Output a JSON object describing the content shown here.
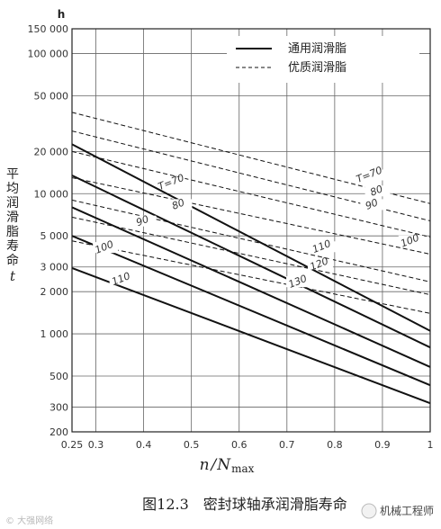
{
  "chart_data": {
    "type": "line",
    "y_unit": "h",
    "y_scale": "log",
    "ylim": [
      200,
      150000
    ],
    "y_ticks": [
      200,
      300,
      500,
      1000,
      2000,
      3000,
      5000,
      10000,
      20000,
      50000,
      100000,
      150000
    ],
    "y_tick_labels": [
      "200",
      "300",
      "500",
      "1 000",
      "2 000",
      "3 000",
      "5 000",
      "10 000",
      "20 000",
      "50 000",
      "100 000",
      "150 000"
    ],
    "ylabel_chars": [
      "平",
      "均",
      "润",
      "滑",
      "脂",
      "寿",
      "命"
    ],
    "ylabel_var": "t",
    "xlim": [
      0.25,
      1
    ],
    "x_ticks": [
      0.25,
      0.3,
      0.4,
      0.5,
      0.6,
      0.7,
      0.8,
      0.9,
      1
    ],
    "x_tick_labels": [
      "0.25",
      "0.3",
      "0.4",
      "0.5",
      "0.6",
      "0.7",
      "0.8",
      "0.9",
      "1"
    ],
    "xlabel_n": "n",
    "xlabel_sep": "/",
    "xlabel_N": "N",
    "xlabel_sub": "max",
    "legend": {
      "placement": "top-right",
      "items": [
        {
          "label": "通用润滑脂",
          "style": "solid"
        },
        {
          "label": "优质润滑脂",
          "style": "dashed"
        }
      ]
    },
    "series": [
      {
        "name": "T=70",
        "group": "solid",
        "x": [
          0.25,
          1
        ],
        "y": [
          22500,
          1050
        ]
      },
      {
        "name": "80",
        "group": "solid",
        "x": [
          0.25,
          1
        ],
        "y": [
          13500,
          800
        ]
      },
      {
        "name": "90",
        "group": "solid",
        "x": [
          0.25,
          1
        ],
        "y": [
          8000,
          580
        ]
      },
      {
        "name": "100",
        "group": "solid",
        "x": [
          0.25,
          1
        ],
        "y": [
          5000,
          430
        ]
      },
      {
        "name": "110",
        "group": "solid",
        "x": [
          0.25,
          1
        ],
        "y": [
          2950,
          320
        ]
      },
      {
        "name": "T=70",
        "group": "dashed",
        "x": [
          0.25,
          1
        ],
        "y": [
          38000,
          8500
        ]
      },
      {
        "name": "80",
        "group": "dashed",
        "x": [
          0.25,
          1
        ],
        "y": [
          28000,
          6400
        ]
      },
      {
        "name": "90",
        "group": "dashed",
        "x": [
          0.25,
          1
        ],
        "y": [
          20000,
          4900
        ]
      },
      {
        "name": "100",
        "group": "dashed",
        "x": [
          0.25,
          1
        ],
        "y": [
          13000,
          3700
        ]
      },
      {
        "name": "110",
        "group": "dashed",
        "x": [
          0.25,
          1
        ],
        "y": [
          9000,
          2350
        ]
      },
      {
        "name": "120",
        "group": "dashed",
        "x": [
          0.25,
          1
        ],
        "y": [
          6800,
          1900
        ]
      },
      {
        "name": "130",
        "group": "dashed",
        "x": [
          0.25,
          1
        ],
        "y": [
          4600,
          1400
        ]
      }
    ],
    "curve_labels": [
      {
        "text": "T=70",
        "x": 0.46,
        "y": 11500
      },
      {
        "text": "80",
        "x": 0.475,
        "y": 8000
      },
      {
        "text": "90",
        "x": 0.4,
        "y": 6100
      },
      {
        "text": "100",
        "x": 0.32,
        "y": 3950
      },
      {
        "text": "110",
        "x": 0.355,
        "y": 2350
      },
      {
        "text": "T=70",
        "x": 0.875,
        "y": 13000
      },
      {
        "text": "80",
        "x": 0.89,
        "y": 10000
      },
      {
        "text": "90",
        "x": 0.88,
        "y": 8000
      },
      {
        "text": "100",
        "x": 0.96,
        "y": 4400
      },
      {
        "text": "110",
        "x": 0.775,
        "y": 4000
      },
      {
        "text": "120",
        "x": 0.77,
        "y": 3000
      },
      {
        "text": "130",
        "x": 0.725,
        "y": 2250
      }
    ]
  },
  "caption": "图12.3　密封球轴承润滑脂寿命",
  "watermark_left": "© 大强网络",
  "watermark_right": "机械工程师"
}
